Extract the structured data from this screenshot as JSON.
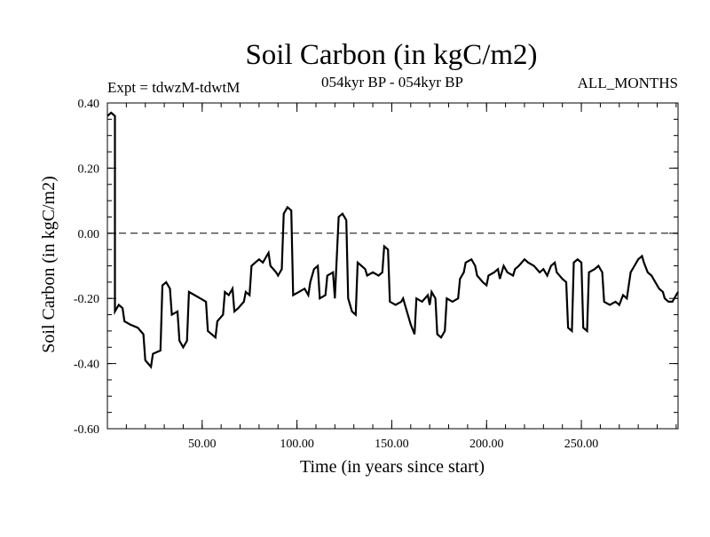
{
  "chart_data": {
    "type": "line",
    "title": "Soil Carbon (in kgC/m2)",
    "experiment_label": "Expt = tdwzM-tdwtM",
    "period_label": "054kyr BP - 054kyr BP",
    "months_label": "ALL_MONTHS",
    "xlabel": "Time (in years since start)",
    "ylabel": "Soil Carbon (in kgC/m2)",
    "xlim": [
      0,
      301
    ],
    "ylim": [
      -0.6,
      0.4
    ],
    "x_ticks": [
      50,
      100,
      150,
      200,
      250
    ],
    "x_tick_labels": [
      "50.00",
      "100.00",
      "150.00",
      "200.00",
      "250.00"
    ],
    "y_ticks": [
      0.4,
      0.2,
      0.0,
      -0.2,
      -0.4,
      -0.6
    ],
    "y_tick_labels": [
      "0.40",
      "0.20",
      "0.00",
      "-0.20",
      "-0.40",
      "-0.60"
    ],
    "reference_line": {
      "y": 0.0,
      "style": "dashed"
    },
    "grid": false,
    "series": [
      {
        "color": "#000000",
        "points": [
          [
            0,
            0.36
          ],
          [
            2,
            0.37
          ],
          [
            4,
            0.36
          ],
          [
            4,
            -0.24
          ],
          [
            6,
            -0.22
          ],
          [
            8,
            -0.23
          ],
          [
            9,
            -0.27
          ],
          [
            12,
            -0.28
          ],
          [
            16,
            -0.29
          ],
          [
            19,
            -0.31
          ],
          [
            20,
            -0.39
          ],
          [
            23,
            -0.41
          ],
          [
            24,
            -0.37
          ],
          [
            28,
            -0.36
          ],
          [
            29,
            -0.16
          ],
          [
            31,
            -0.15
          ],
          [
            33,
            -0.17
          ],
          [
            34,
            -0.25
          ],
          [
            37,
            -0.24
          ],
          [
            38,
            -0.33
          ],
          [
            40,
            -0.35
          ],
          [
            42,
            -0.33
          ],
          [
            43,
            -0.18
          ],
          [
            46,
            -0.19
          ],
          [
            49,
            -0.2
          ],
          [
            52,
            -0.21
          ],
          [
            53,
            -0.3
          ],
          [
            55,
            -0.31
          ],
          [
            57,
            -0.32
          ],
          [
            58,
            -0.27
          ],
          [
            61,
            -0.25
          ],
          [
            62,
            -0.18
          ],
          [
            64,
            -0.19
          ],
          [
            66,
            -0.17
          ],
          [
            67,
            -0.24
          ],
          [
            69,
            -0.23
          ],
          [
            72,
            -0.21
          ],
          [
            73,
            -0.18
          ],
          [
            75,
            -0.19
          ],
          [
            76,
            -0.1
          ],
          [
            78,
            -0.09
          ],
          [
            80,
            -0.08
          ],
          [
            82,
            -0.09
          ],
          [
            84,
            -0.07
          ],
          [
            85,
            -0.06
          ],
          [
            86,
            -0.1
          ],
          [
            89,
            -0.12
          ],
          [
            90,
            -0.13
          ],
          [
            92,
            -0.11
          ],
          [
            93,
            0.06
          ],
          [
            95,
            0.08
          ],
          [
            97,
            0.07
          ],
          [
            98,
            -0.19
          ],
          [
            101,
            -0.18
          ],
          [
            104,
            -0.17
          ],
          [
            106,
            -0.19
          ],
          [
            107,
            -0.15
          ],
          [
            109,
            -0.11
          ],
          [
            111,
            -0.1
          ],
          [
            112,
            -0.2
          ],
          [
            115,
            -0.19
          ],
          [
            116,
            -0.13
          ],
          [
            119,
            -0.12
          ],
          [
            120,
            -0.2
          ],
          [
            122,
            0.05
          ],
          [
            124,
            0.06
          ],
          [
            126,
            0.04
          ],
          [
            127,
            -0.2
          ],
          [
            129,
            -0.24
          ],
          [
            131,
            -0.25
          ],
          [
            132,
            -0.09
          ],
          [
            134,
            -0.1
          ],
          [
            136,
            -0.11
          ],
          [
            137,
            -0.13
          ],
          [
            140,
            -0.12
          ],
          [
            143,
            -0.13
          ],
          [
            145,
            -0.12
          ],
          [
            146,
            -0.04
          ],
          [
            148,
            -0.05
          ],
          [
            149,
            -0.21
          ],
          [
            152,
            -0.22
          ],
          [
            155,
            -0.21
          ],
          [
            156,
            -0.2
          ],
          [
            158,
            -0.24
          ],
          [
            160,
            -0.28
          ],
          [
            162,
            -0.31
          ],
          [
            163,
            -0.2
          ],
          [
            166,
            -0.21
          ],
          [
            169,
            -0.19
          ],
          [
            170,
            -0.22
          ],
          [
            171,
            -0.18
          ],
          [
            173,
            -0.2
          ],
          [
            174,
            -0.31
          ],
          [
            176,
            -0.32
          ],
          [
            178,
            -0.3
          ],
          [
            179,
            -0.2
          ],
          [
            182,
            -0.21
          ],
          [
            185,
            -0.2
          ],
          [
            186,
            -0.14
          ],
          [
            188,
            -0.12
          ],
          [
            189,
            -0.09
          ],
          [
            192,
            -0.08
          ],
          [
            194,
            -0.1
          ],
          [
            195,
            -0.13
          ],
          [
            198,
            -0.15
          ],
          [
            200,
            -0.16
          ],
          [
            201,
            -0.13
          ],
          [
            204,
            -0.12
          ],
          [
            206,
            -0.11
          ],
          [
            207,
            -0.14
          ],
          [
            209,
            -0.1
          ],
          [
            211,
            -0.12
          ],
          [
            214,
            -0.13
          ],
          [
            215,
            -0.11
          ],
          [
            217,
            -0.1
          ],
          [
            220,
            -0.08
          ],
          [
            222,
            -0.09
          ],
          [
            225,
            -0.1
          ],
          [
            228,
            -0.12
          ],
          [
            230,
            -0.11
          ],
          [
            232,
            -0.13
          ],
          [
            234,
            -0.1
          ],
          [
            236,
            -0.09
          ],
          [
            237,
            -0.12
          ],
          [
            240,
            -0.14
          ],
          [
            242,
            -0.15
          ],
          [
            243,
            -0.29
          ],
          [
            245,
            -0.3
          ],
          [
            246,
            -0.09
          ],
          [
            248,
            -0.08
          ],
          [
            250,
            -0.09
          ],
          [
            251,
            -0.29
          ],
          [
            253,
            -0.3
          ],
          [
            254,
            -0.12
          ],
          [
            257,
            -0.11
          ],
          [
            259,
            -0.1
          ],
          [
            261,
            -0.12
          ],
          [
            262,
            -0.21
          ],
          [
            265,
            -0.22
          ],
          [
            268,
            -0.21
          ],
          [
            270,
            -0.22
          ],
          [
            272,
            -0.19
          ],
          [
            274,
            -0.2
          ],
          [
            276,
            -0.12
          ],
          [
            278,
            -0.1
          ],
          [
            280,
            -0.08
          ],
          [
            282,
            -0.07
          ],
          [
            283,
            -0.09
          ],
          [
            285,
            -0.12
          ],
          [
            287,
            -0.13
          ],
          [
            289,
            -0.15
          ],
          [
            291,
            -0.17
          ],
          [
            293,
            -0.18
          ],
          [
            294,
            -0.2
          ],
          [
            296,
            -0.21
          ],
          [
            298,
            -0.21
          ],
          [
            300,
            -0.19
          ],
          [
            301,
            -0.18
          ]
        ]
      }
    ]
  }
}
